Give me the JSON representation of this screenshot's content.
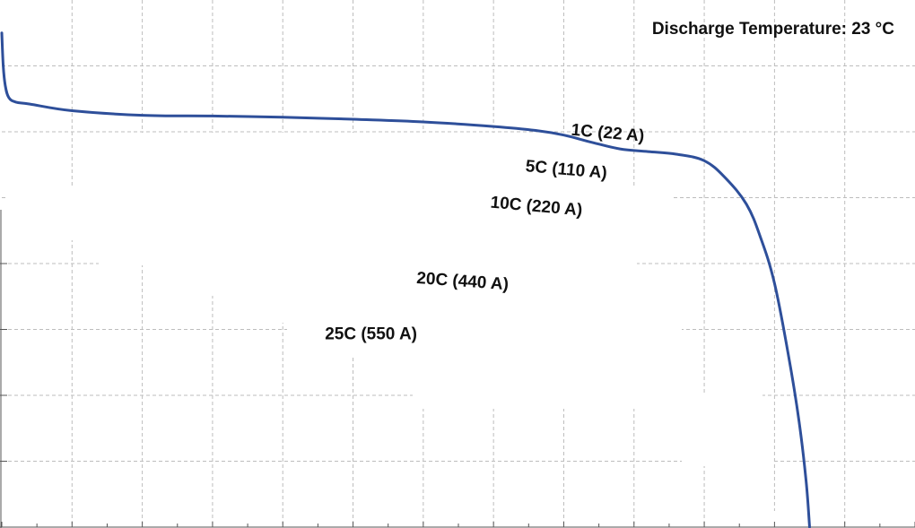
{
  "chart_data": {
    "type": "line",
    "title": "",
    "xlabel": "",
    "ylabel": "",
    "grid": true,
    "xlim": [
      0,
      13
    ],
    "ylim": [
      0,
      8
    ],
    "annotations": [
      {
        "name": "discharge-temperature",
        "text": "Discharge Temperature: 23 °C",
        "position": "top-right"
      }
    ],
    "series_labels": [
      {
        "name": "1C",
        "text": "1C (22 A)",
        "x": 8.1,
        "y": 5.95,
        "rotate": 5
      },
      {
        "name": "5C",
        "text": "5C (110 A)",
        "x": 7.45,
        "y": 5.4,
        "rotate": 5
      },
      {
        "name": "10C",
        "text": "10C (220 A)",
        "x": 6.95,
        "y": 4.85,
        "rotate": 5
      },
      {
        "name": "20C",
        "text": "20C (440 A)",
        "x": 5.9,
        "y": 3.7,
        "rotate": 4
      },
      {
        "name": "25C",
        "text": "25C (550 A)",
        "x": 4.6,
        "y": 2.85,
        "rotate": 0
      }
    ],
    "series": [
      {
        "name": "1C (22 A)",
        "color": "#2e4f9a",
        "x": [
          0.0,
          0.02,
          0.05,
          0.1,
          0.2,
          0.4,
          1.0,
          2.0,
          3.0,
          4.0,
          5.0,
          6.0,
          7.0,
          7.6,
          8.0,
          8.4,
          8.8,
          9.2,
          9.6,
          10.0,
          10.3,
          10.6,
          10.8,
          11.0,
          11.2,
          11.35,
          11.45,
          11.5
        ],
        "y": [
          7.5,
          7.0,
          6.7,
          6.52,
          6.45,
          6.42,
          6.32,
          6.25,
          6.24,
          6.22,
          6.19,
          6.15,
          6.08,
          6.02,
          5.95,
          5.84,
          5.74,
          5.7,
          5.66,
          5.56,
          5.3,
          4.9,
          4.4,
          3.7,
          2.6,
          1.6,
          0.7,
          0.0
        ]
      }
    ]
  }
}
